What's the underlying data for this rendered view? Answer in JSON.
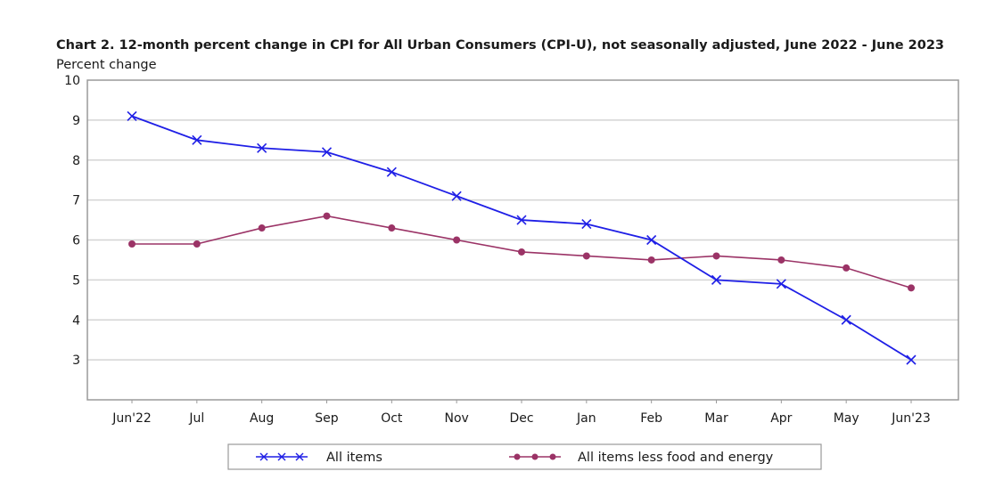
{
  "chart_data": {
    "type": "line",
    "title": "Chart 2. 12-month percent change in CPI for All Urban Consumers (CPI-U), not seasonally adjusted, June 2022 - June 2023",
    "ylabel": "Percent change",
    "xlabel": "",
    "categories": [
      "Jun'22",
      "Jul",
      "Aug",
      "Sep",
      "Oct",
      "Nov",
      "Dec",
      "Jan",
      "Feb",
      "Mar",
      "Apr",
      "May",
      "Jun'23"
    ],
    "ylim": [
      2,
      10
    ],
    "yticks": [
      3,
      4,
      5,
      6,
      7,
      8,
      9,
      10
    ],
    "grid": true,
    "legend_position": "bottom",
    "series": [
      {
        "name": "All items",
        "color": "#1f1fe6",
        "marker": "x",
        "values": [
          9.1,
          8.5,
          8.3,
          8.2,
          7.7,
          7.1,
          6.5,
          6.4,
          6.0,
          5.0,
          4.9,
          4.0,
          3.0
        ]
      },
      {
        "name": "All items less food and energy",
        "color": "#9b3366",
        "marker": "dot",
        "values": [
          5.9,
          5.9,
          6.3,
          6.6,
          6.3,
          6.0,
          5.7,
          5.6,
          5.5,
          5.6,
          5.5,
          5.3,
          4.8
        ]
      }
    ]
  }
}
